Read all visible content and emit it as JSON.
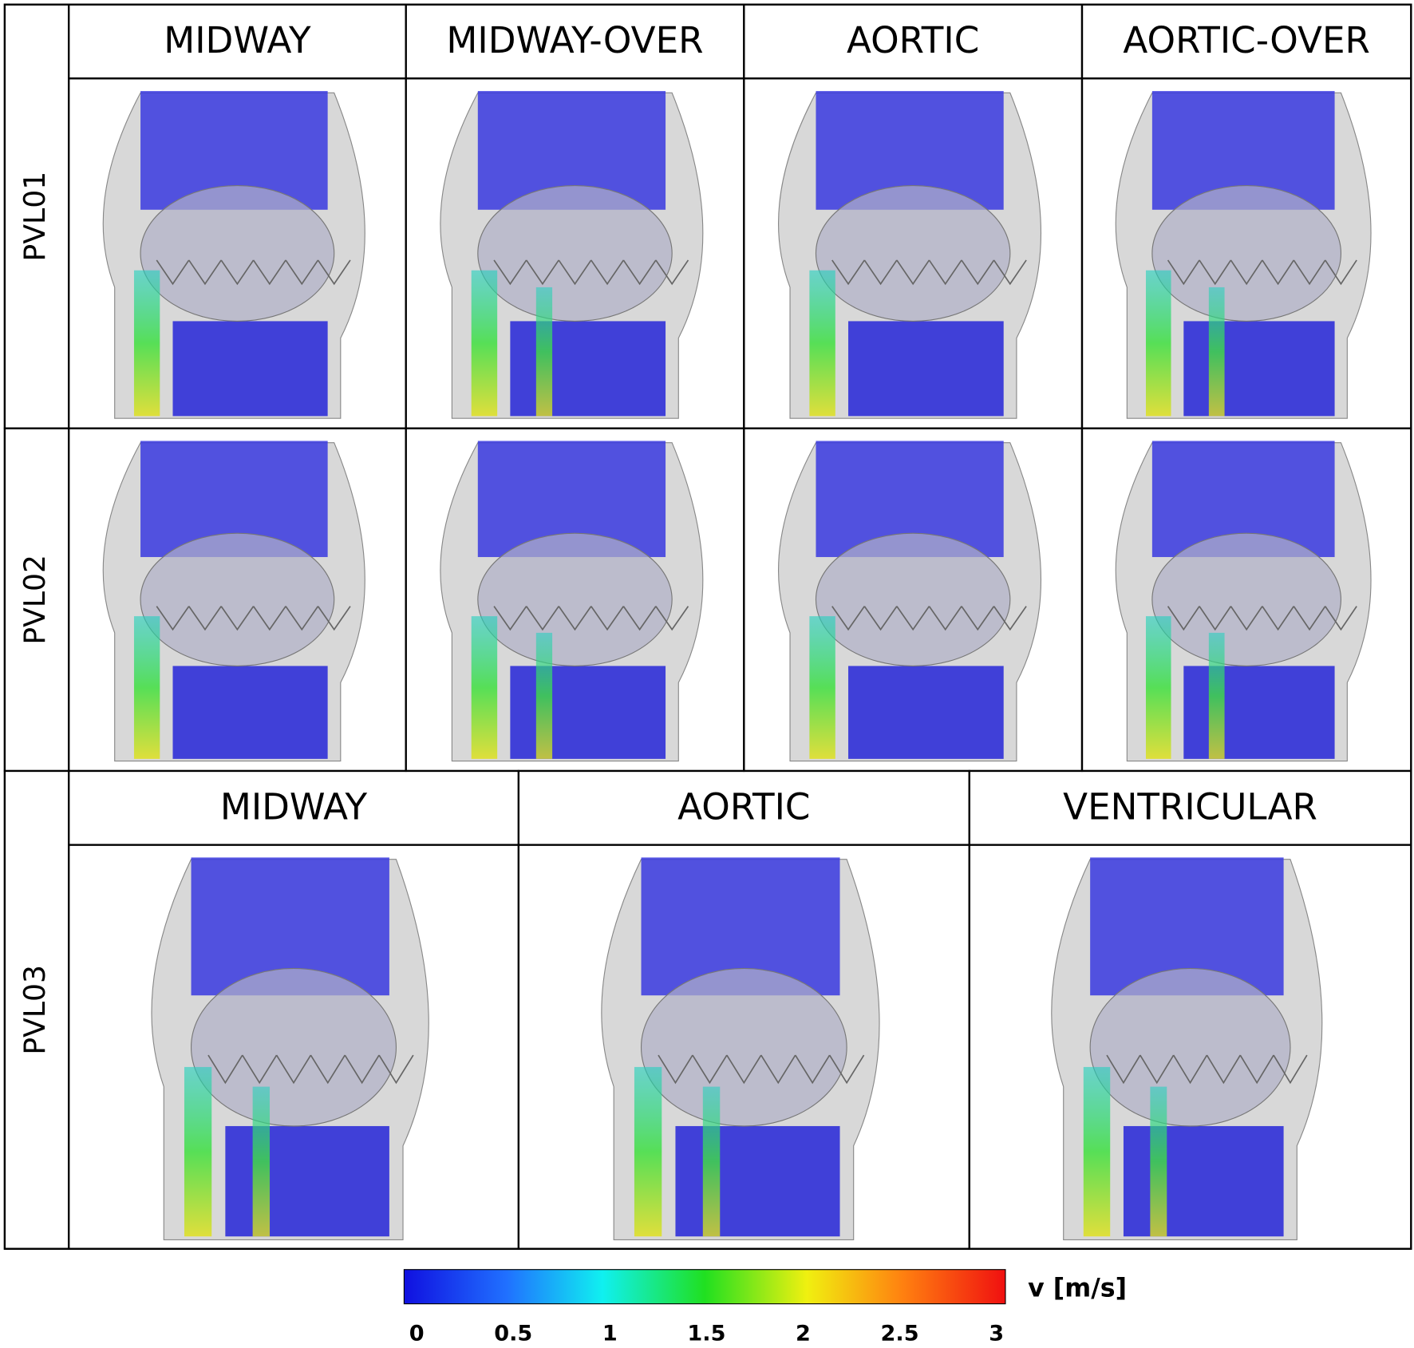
{
  "row_labels": [
    "PVL01",
    "PVL02",
    "PVL03"
  ],
  "header_top": [
    "MIDWAY",
    "MIDWAY-OVER",
    "AORTIC",
    "AORTIC-OVER"
  ],
  "header_bottom": [
    "MIDWAY",
    "AORTIC",
    "VENTRICULAR"
  ],
  "colorbar": {
    "label": "v [m/s]",
    "range": [
      0,
      3
    ],
    "ticks": [
      0,
      0.5,
      1,
      1.5,
      2,
      2.5,
      3
    ]
  }
}
